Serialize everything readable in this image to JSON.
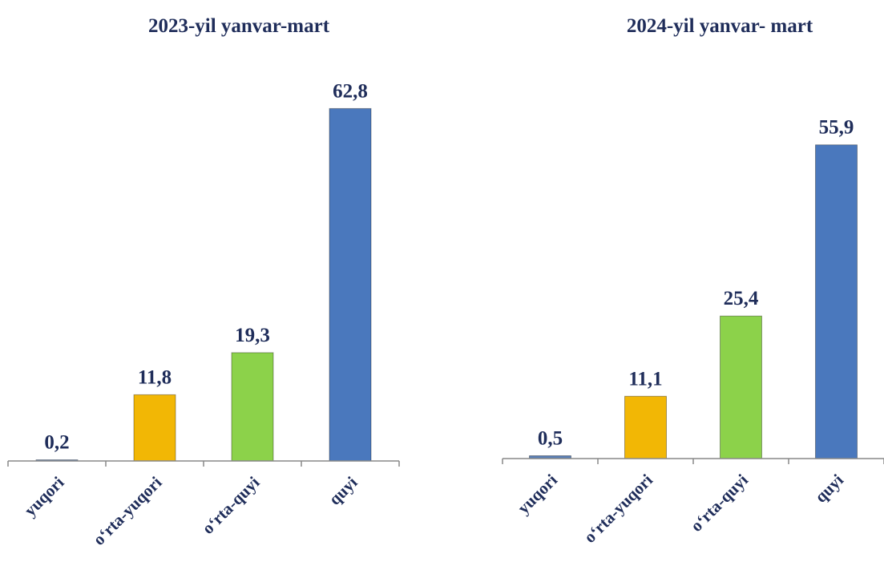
{
  "chart_data": [
    {
      "type": "bar",
      "title": "2023-yil yanvar-mart",
      "categories": [
        "yuqori",
        "oʻrta-yuqori",
        "oʻrta-quyi",
        "quyi"
      ],
      "values": [
        0.2,
        11.8,
        19.3,
        62.8
      ],
      "value_labels": [
        "0,2",
        "11,8",
        "19,3",
        "62,8"
      ],
      "colors": [
        "#5a7fb5",
        "#f2b705",
        "#8cd24a",
        "#4a78bd"
      ]
    },
    {
      "type": "bar",
      "title": "2024-yil yanvar- mart",
      "categories": [
        "yuqori",
        "oʻrta-yuqori",
        "oʻrta-quyi",
        "quyi"
      ],
      "values": [
        0.5,
        11.1,
        25.4,
        55.9
      ],
      "value_labels": [
        "0,5",
        "11,1",
        "25,4",
        "55,9"
      ],
      "colors": [
        "#5a7fb5",
        "#f2b705",
        "#8cd24a",
        "#4a78bd"
      ]
    }
  ]
}
